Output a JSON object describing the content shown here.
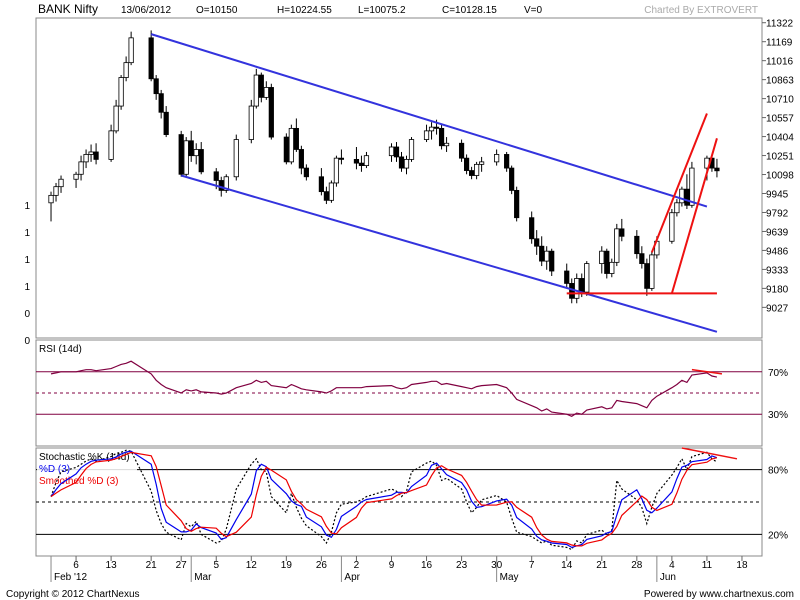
{
  "header": {
    "symbol": "BANK Nifty",
    "date": "13/06/2012",
    "open": "O=10150",
    "high": "H=10224.55",
    "low": "L=10075.2",
    "close": "C=10128.15",
    "volume": "V=0",
    "charted_by": "Charted By EXTROVERT"
  },
  "footer": {
    "copyright": "Copyright © 2012 ChartNexus",
    "powered": "Powered by www.chartnexus.com"
  },
  "colors": {
    "up": "#ffffff",
    "down": "#000000",
    "channel": "#3333dd",
    "trend": "#ee1111",
    "indicator": "#800040",
    "stoch_k": "#000000",
    "stoch_d": "#0000ee",
    "stoch_smooth": "#ee0000"
  },
  "chart_data": [
    {
      "type": "candlestick",
      "name": "price",
      "y_ticks": [
        "11322",
        "11169",
        "11016",
        "10863",
        "10710",
        "10557",
        "10404",
        "10251",
        "10098",
        "9945",
        "9792",
        "9639",
        "9486",
        "9333",
        "9180",
        "9027"
      ],
      "y_tick_values": [
        11322,
        11169,
        11016,
        10863,
        10710,
        10557,
        10404,
        10251,
        10098,
        9945,
        9792,
        9639,
        9486,
        9333,
        9180,
        9027
      ],
      "left_ticks": [
        "1",
        "1",
        "1",
        "1",
        "0",
        "0"
      ],
      "ylim": [
        8780,
        11360
      ],
      "x_days": [
        "2012-02-01",
        "2012-02-02",
        "2012-02-03",
        "2012-02-06",
        "2012-02-07",
        "2012-02-08",
        "2012-02-09",
        "2012-02-10",
        "2012-02-13",
        "2012-02-14",
        "2012-02-15",
        "2012-02-16",
        "2012-02-17",
        "2012-02-21",
        "2012-02-22",
        "2012-02-23",
        "2012-02-24",
        "2012-02-27",
        "2012-02-28",
        "2012-02-29",
        "2012-03-01",
        "2012-03-02",
        "2012-03-05",
        "2012-03-06",
        "2012-03-07",
        "2012-03-09",
        "2012-03-12",
        "2012-03-13",
        "2012-03-14",
        "2012-03-15",
        "2012-03-16",
        "2012-03-19",
        "2012-03-20",
        "2012-03-21",
        "2012-03-22",
        "2012-03-23",
        "2012-03-26",
        "2012-03-27",
        "2012-03-28",
        "2012-03-29",
        "2012-03-30",
        "2012-04-02",
        "2012-04-03",
        "2012-04-04",
        "2012-04-09",
        "2012-04-10",
        "2012-04-11",
        "2012-04-12",
        "2012-04-13",
        "2012-04-16",
        "2012-04-17",
        "2012-04-18",
        "2012-04-19",
        "2012-04-20",
        "2012-04-23",
        "2012-04-24",
        "2012-04-25",
        "2012-04-26",
        "2012-04-27",
        "2012-04-30",
        "2012-05-02",
        "2012-05-03",
        "2012-05-04",
        "2012-05-07",
        "2012-05-08",
        "2012-05-09",
        "2012-05-10",
        "2012-05-11",
        "2012-05-14",
        "2012-05-15",
        "2012-05-16",
        "2012-05-17",
        "2012-05-18",
        "2012-05-21",
        "2012-05-22",
        "2012-05-23",
        "2012-05-24",
        "2012-05-25",
        "2012-05-28",
        "2012-05-29",
        "2012-05-30",
        "2012-05-31",
        "2012-06-01",
        "2012-06-04",
        "2012-06-05",
        "2012-06-06",
        "2012-06-07",
        "2012-06-08",
        "2012-06-11",
        "2012-06-12",
        "2012-06-13"
      ],
      "x_tick_labels": [
        {
          "label": "6",
          "date": "2012-02-06"
        },
        {
          "label": "13",
          "date": "2012-02-13"
        },
        {
          "label": "21",
          "date": "2012-02-21"
        },
        {
          "label": "27",
          "date": "2012-02-27"
        },
        {
          "label": "5",
          "date": "2012-03-05"
        },
        {
          "label": "12",
          "date": "2012-03-12"
        },
        {
          "label": "19",
          "date": "2012-03-19"
        },
        {
          "label": "26",
          "date": "2012-03-26"
        },
        {
          "label": "2",
          "date": "2012-04-02"
        },
        {
          "label": "9",
          "date": "2012-04-09"
        },
        {
          "label": "16",
          "date": "2012-04-16"
        },
        {
          "label": "23",
          "date": "2012-04-23"
        },
        {
          "label": "30",
          "date": "2012-04-30"
        },
        {
          "label": "7",
          "date": "2012-05-07"
        },
        {
          "label": "14",
          "date": "2012-05-14"
        },
        {
          "label": "21",
          "date": "2012-05-21"
        },
        {
          "label": "28",
          "date": "2012-05-28"
        },
        {
          "label": "4",
          "date": "2012-06-04"
        },
        {
          "label": "11",
          "date": "2012-06-11"
        },
        {
          "label": "18",
          "date": "2012-06-18"
        }
      ],
      "month_labels": [
        {
          "label": "Feb '12",
          "date": "2012-02-01"
        },
        {
          "label": "Mar",
          "date": "2012-02-29"
        },
        {
          "label": "Apr",
          "date": "2012-03-30"
        },
        {
          "label": "May",
          "date": "2012-04-30"
        },
        {
          "label": "Jun",
          "date": "2012-06-01"
        }
      ],
      "ohlc": [
        [
          9870,
          9960,
          9720,
          9930
        ],
        [
          9930,
          10030,
          9880,
          10000
        ],
        [
          10000,
          10090,
          9950,
          10060
        ],
        [
          10060,
          10120,
          9990,
          10100
        ],
        [
          10100,
          10250,
          10050,
          10200
        ],
        [
          10200,
          10300,
          10150,
          10260
        ],
        [
          10260,
          10340,
          10200,
          10280
        ],
        [
          10280,
          10350,
          10180,
          10220
        ],
        [
          10220,
          10500,
          10200,
          10450
        ],
        [
          10450,
          10700,
          10430,
          10650
        ],
        [
          10650,
          10900,
          10620,
          10880
        ],
        [
          10880,
          11050,
          10850,
          11000
        ],
        [
          11000,
          11250,
          10980,
          11200
        ],
        [
          11200,
          11260,
          10850,
          10870
        ],
        [
          10870,
          10900,
          10700,
          10750
        ],
        [
          10750,
          10780,
          10550,
          10600
        ],
        [
          10600,
          10650,
          10400,
          10420
        ],
        [
          10420,
          10450,
          10080,
          10100
        ],
        [
          10100,
          10400,
          10080,
          10370
        ],
        [
          10370,
          10450,
          10200,
          10250
        ],
        [
          10250,
          10350,
          10180,
          10300
        ],
        [
          10300,
          10360,
          10100,
          10120
        ],
        [
          10120,
          10150,
          9980,
          10050
        ],
        [
          10050,
          10080,
          9920,
          9970
        ],
        [
          9970,
          10100,
          9950,
          10080
        ],
        [
          10080,
          10420,
          10050,
          10380
        ],
        [
          10380,
          10700,
          10350,
          10650
        ],
        [
          10650,
          10950,
          10630,
          10900
        ],
        [
          10900,
          10920,
          10680,
          10720
        ],
        [
          10720,
          10850,
          10700,
          10800
        ],
        [
          10800,
          10830,
          10380,
          10400
        ],
        [
          10400,
          10430,
          10180,
          10200
        ],
        [
          10200,
          10500,
          10180,
          10470
        ],
        [
          10470,
          10550,
          10280,
          10300
        ],
        [
          10300,
          10330,
          10100,
          10150
        ],
        [
          10150,
          10180,
          10050,
          10080
        ],
        [
          10080,
          10150,
          9930,
          9960
        ],
        [
          9960,
          10000,
          9860,
          9890
        ],
        [
          9890,
          10050,
          9870,
          10030
        ],
        [
          10030,
          10250,
          10000,
          10230
        ],
        [
          10230,
          10300,
          10180,
          10220
        ],
        [
          10220,
          10320,
          10140,
          10190
        ],
        [
          10190,
          10250,
          10120,
          10170
        ],
        [
          10170,
          10280,
          10150,
          10250
        ],
        [
          10250,
          10350,
          10200,
          10320
        ],
        [
          10320,
          10360,
          10200,
          10240
        ],
        [
          10240,
          10280,
          10120,
          10150
        ],
        [
          10150,
          10250,
          10100,
          10220
        ],
        [
          10220,
          10400,
          10200,
          10380
        ],
        [
          10380,
          10500,
          10360,
          10450
        ],
        [
          10450,
          10520,
          10380,
          10480
        ],
        [
          10480,
          10540,
          10420,
          10470
        ],
        [
          10470,
          10500,
          10300,
          10330
        ],
        [
          10330,
          10400,
          10280,
          10350
        ],
        [
          10350,
          10380,
          10200,
          10230
        ],
        [
          10230,
          10260,
          10100,
          10130
        ],
        [
          10130,
          10160,
          10060,
          10090
        ],
        [
          10090,
          10200,
          10060,
          10180
        ],
        [
          10180,
          10240,
          10120,
          10200
        ],
        [
          10200,
          10300,
          10170,
          10260
        ],
        [
          10260,
          10280,
          10120,
          10150
        ],
        [
          10150,
          10170,
          9940,
          9970
        ],
        [
          9970,
          10000,
          9720,
          9750
        ],
        [
          9750,
          9800,
          9540,
          9580
        ],
        [
          9580,
          9650,
          9450,
          9520
        ],
        [
          9520,
          9600,
          9360,
          9400
        ],
        [
          9400,
          9520,
          9330,
          9480
        ],
        [
          9480,
          9500,
          9280,
          9320
        ],
        [
          9320,
          9380,
          9180,
          9220
        ],
        [
          9220,
          9260,
          9060,
          9100
        ],
        [
          9100,
          9300,
          9060,
          9260
        ],
        [
          9260,
          9300,
          9110,
          9150
        ],
        [
          9150,
          9400,
          9120,
          9380
        ],
        [
          9380,
          9520,
          9300,
          9480
        ],
        [
          9480,
          9500,
          9260,
          9300
        ],
        [
          9300,
          9420,
          9270,
          9390
        ],
        [
          9390,
          9700,
          9360,
          9660
        ],
        [
          9660,
          9740,
          9560,
          9600
        ],
        [
          9600,
          9650,
          9420,
          9460
        ],
        [
          9460,
          9520,
          9340,
          9380
        ],
        [
          9380,
          9420,
          9120,
          9180
        ],
        [
          9180,
          9480,
          9160,
          9450
        ],
        [
          9450,
          9600,
          9420,
          9560
        ],
        [
          9560,
          9820,
          9540,
          9790
        ],
        [
          9790,
          9900,
          9760,
          9870
        ],
        [
          9870,
          10000,
          9840,
          9980
        ],
        [
          9980,
          10100,
          9820,
          9850
        ],
        [
          9850,
          10200,
          9830,
          10150
        ],
        [
          10150,
          10250,
          10050,
          10230
        ],
        [
          10230,
          10240,
          10120,
          10150
        ],
        [
          10150,
          10224.55,
          10075.2,
          10128.15
        ]
      ],
      "lines": [
        {
          "kind": "channel",
          "from": [
            "2012-02-21",
            11230
          ],
          "to": [
            "2012-06-11",
            9840
          ]
        },
        {
          "kind": "channel",
          "from": [
            "2012-02-27",
            10090
          ],
          "to": [
            "2012-06-13",
            8830
          ]
        },
        {
          "kind": "trend",
          "from": [
            "2012-06-04",
            9140
          ],
          "to": [
            "2012-06-13",
            10390
          ]
        },
        {
          "kind": "trend",
          "from": [
            "2012-05-31",
            9470
          ],
          "to": [
            "2012-06-11",
            10590
          ]
        },
        {
          "kind": "trend",
          "from": [
            "2012-05-14",
            9140
          ],
          "to": [
            "2012-06-13",
            9140
          ]
        }
      ]
    },
    {
      "type": "line",
      "name": "rsi",
      "title": "RSI (14d)",
      "y_ticks": [
        "70%",
        "30%"
      ],
      "levels": [
        70,
        50,
        30
      ],
      "ylim": [
        0,
        100
      ],
      "values": [
        68,
        69,
        70,
        70,
        71,
        72,
        72,
        71,
        73,
        75,
        77,
        78,
        80,
        68,
        62,
        58,
        55,
        50,
        53,
        52,
        53,
        51,
        50,
        49,
        50,
        55,
        59,
        62,
        60,
        61,
        57,
        55,
        58,
        56,
        54,
        53,
        51,
        50,
        52,
        55,
        55,
        55,
        55,
        56,
        57,
        55,
        54,
        55,
        58,
        60,
        61,
        61,
        58,
        59,
        56,
        55,
        54,
        56,
        57,
        58,
        55,
        50,
        44,
        38,
        36,
        33,
        35,
        32,
        30,
        28,
        31,
        30,
        34,
        37,
        35,
        36,
        43,
        42,
        40,
        38,
        36,
        43,
        47,
        55,
        58,
        62,
        60,
        67,
        69,
        66,
        65
      ]
    },
    {
      "type": "line",
      "name": "stochastic",
      "title": "Stochastic %K (14d)",
      "legend": [
        "%D (3)",
        "Smoothed %D (3)"
      ],
      "y_ticks": [
        "80%",
        "20%"
      ],
      "levels": [
        80,
        50,
        20
      ],
      "ylim": [
        0,
        100
      ],
      "k": [
        55,
        68,
        78,
        82,
        85,
        88,
        90,
        88,
        92,
        95,
        96,
        98,
        97,
        60,
        42,
        30,
        22,
        15,
        30,
        27,
        32,
        20,
        12,
        14,
        25,
        62,
        85,
        90,
        80,
        78,
        55,
        40,
        58,
        45,
        35,
        28,
        18,
        12,
        22,
        40,
        48,
        50,
        52,
        55,
        62,
        60,
        55,
        60,
        78,
        86,
        88,
        84,
        70,
        72,
        62,
        50,
        40,
        45,
        52,
        56,
        50,
        35,
        22,
        18,
        15,
        12,
        14,
        10,
        8,
        6,
        14,
        12,
        20,
        24,
        20,
        24,
        70,
        62,
        52,
        45,
        30,
        45,
        58,
        75,
        82,
        90,
        80,
        92,
        96,
        90,
        87
      ]
    }
  ]
}
